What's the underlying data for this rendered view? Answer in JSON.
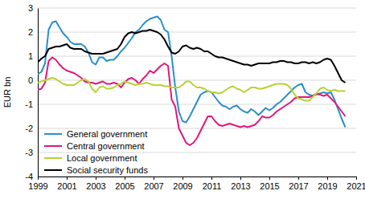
{
  "chart_data": {
    "type": "line",
    "y_label": "EUR bn",
    "x": [
      1999,
      1999.25,
      1999.5,
      1999.75,
      2000,
      2000.25,
      2000.5,
      2000.75,
      2001,
      2001.25,
      2001.5,
      2001.75,
      2002,
      2002.25,
      2002.5,
      2002.75,
      2003,
      2003.25,
      2003.5,
      2003.75,
      2004,
      2004.25,
      2004.5,
      2004.75,
      2005,
      2005.25,
      2005.5,
      2005.75,
      2006,
      2006.25,
      2006.5,
      2006.75,
      2007,
      2007.25,
      2007.5,
      2007.75,
      2008,
      2008.25,
      2008.5,
      2008.75,
      2009,
      2009.25,
      2009.5,
      2009.75,
      2010,
      2010.25,
      2010.5,
      2010.75,
      2011,
      2011.25,
      2011.5,
      2011.75,
      2012,
      2012.25,
      2012.5,
      2012.75,
      2013,
      2013.25,
      2013.5,
      2013.75,
      2014,
      2014.25,
      2014.5,
      2014.75,
      2015,
      2015.25,
      2015.5,
      2015.75,
      2016,
      2016.25,
      2016.5,
      2016.75,
      2017,
      2017.25,
      2017.5,
      2017.75,
      2018,
      2018.25,
      2018.5,
      2018.75,
      2019,
      2019.25,
      2019.5,
      2019.75,
      2020,
      2020.25
    ],
    "series": [
      {
        "name": "General government",
        "color": "#2a8fc7",
        "values": [
          0.25,
          0.35,
          0.7,
          2.1,
          2.4,
          2.45,
          2.2,
          1.95,
          1.8,
          1.6,
          1.5,
          1.5,
          1.5,
          1.4,
          1.15,
          0.75,
          0.65,
          0.95,
          0.95,
          0.8,
          0.85,
          0.85,
          1.0,
          1.2,
          1.35,
          1.55,
          1.75,
          2.0,
          2.1,
          2.3,
          2.45,
          2.55,
          2.6,
          2.65,
          2.5,
          2.1,
          2.0,
          1.0,
          -0.3,
          -1.3,
          -1.7,
          -1.75,
          -1.5,
          -1.2,
          -0.9,
          -0.6,
          -0.5,
          -0.45,
          -0.5,
          -0.7,
          -0.9,
          -1.05,
          -1.1,
          -1.2,
          -1.1,
          -1.05,
          -1.2,
          -1.3,
          -1.35,
          -1.2,
          -1.3,
          -1.45,
          -1.3,
          -1.15,
          -1.25,
          -1.15,
          -1.0,
          -0.9,
          -0.75,
          -0.6,
          -0.45,
          -0.3,
          -0.2,
          -0.15,
          -0.5,
          -0.6,
          -0.65,
          -0.6,
          -0.55,
          -0.5,
          -0.55,
          -0.5,
          -0.8,
          -1.2,
          -1.6,
          -1.95
        ]
      },
      {
        "name": "Central government",
        "color": "#e0177d",
        "values": [
          -0.4,
          -0.35,
          -0.1,
          0.8,
          0.95,
          0.85,
          0.65,
          0.5,
          0.4,
          0.35,
          0.3,
          0.2,
          0.1,
          -0.05,
          -0.1,
          -0.1,
          -0.15,
          -0.1,
          -0.05,
          -0.15,
          -0.15,
          -0.1,
          -0.15,
          -0.3,
          -0.1,
          0.05,
          0.1,
          0.0,
          -0.15,
          0.05,
          0.2,
          0.4,
          0.3,
          0.45,
          0.6,
          0.7,
          0.6,
          -0.8,
          -1.1,
          -2.0,
          -2.3,
          -2.6,
          -2.7,
          -2.6,
          -2.4,
          -2.1,
          -1.8,
          -1.5,
          -1.5,
          -1.7,
          -1.85,
          -1.9,
          -1.85,
          -1.8,
          -1.85,
          -1.9,
          -1.95,
          -1.9,
          -1.95,
          -1.9,
          -1.85,
          -1.7,
          -1.5,
          -1.55,
          -1.55,
          -1.45,
          -1.3,
          -1.2,
          -1.1,
          -1.0,
          -0.9,
          -0.75,
          -0.7,
          -0.7,
          -0.7,
          -0.7,
          -0.65,
          -0.55,
          -0.6,
          -0.65,
          -0.6,
          -0.75,
          -0.9,
          -1.1,
          -1.3,
          -1.5
        ]
      },
      {
        "name": "Local government",
        "color": "#b5d334",
        "values": [
          -0.1,
          -0.05,
          0.0,
          0.05,
          0.1,
          0.05,
          -0.05,
          -0.15,
          -0.2,
          -0.2,
          -0.2,
          -0.1,
          0.0,
          0.05,
          -0.05,
          -0.35,
          -0.5,
          -0.3,
          -0.25,
          -0.35,
          -0.35,
          -0.3,
          -0.2,
          -0.15,
          -0.05,
          -0.1,
          -0.15,
          -0.2,
          -0.15,
          -0.15,
          -0.1,
          -0.15,
          -0.2,
          -0.2,
          -0.2,
          -0.25,
          -0.25,
          -0.3,
          -0.3,
          -0.3,
          -0.2,
          -0.05,
          -0.05,
          -0.2,
          -0.3,
          -0.3,
          -0.35,
          -0.45,
          -0.5,
          -0.5,
          -0.55,
          -0.5,
          -0.4,
          -0.3,
          -0.25,
          -0.35,
          -0.4,
          -0.5,
          -0.4,
          -0.3,
          -0.3,
          -0.35,
          -0.35,
          -0.3,
          -0.25,
          -0.2,
          -0.15,
          -0.15,
          -0.15,
          -0.2,
          -0.35,
          -0.6,
          -0.75,
          -0.8,
          -0.85,
          -0.85,
          -0.7,
          -0.55,
          -0.35,
          -0.3,
          -0.4,
          -0.45,
          -0.4,
          -0.45,
          -0.45,
          -0.45
        ]
      },
      {
        "name": "Social security funds",
        "color": "#000000",
        "values": [
          0.75,
          0.9,
          1.0,
          1.3,
          1.35,
          1.4,
          1.4,
          1.45,
          1.5,
          1.35,
          1.3,
          1.3,
          1.3,
          1.2,
          1.15,
          1.1,
          1.1,
          1.1,
          1.1,
          1.15,
          1.2,
          1.25,
          1.3,
          1.5,
          1.8,
          1.95,
          2.0,
          1.95,
          2.0,
          2.05,
          2.05,
          2.1,
          2.05,
          2.0,
          1.9,
          1.7,
          1.4,
          1.15,
          1.1,
          1.2,
          1.4,
          1.45,
          1.35,
          1.3,
          1.35,
          1.3,
          1.2,
          1.2,
          1.1,
          1.0,
          0.95,
          0.95,
          0.9,
          0.85,
          0.8,
          0.75,
          0.7,
          0.65,
          0.65,
          0.6,
          0.65,
          0.7,
          0.7,
          0.7,
          0.7,
          0.75,
          0.75,
          0.8,
          0.8,
          0.75,
          0.75,
          0.7,
          0.7,
          0.75,
          0.75,
          0.7,
          0.75,
          0.7,
          0.75,
          0.85,
          0.9,
          0.85,
          0.6,
          0.3,
          0.0,
          -0.1
        ]
      }
    ],
    "xlim": [
      1999,
      2021
    ],
    "xticks": [
      1999,
      2001,
      2003,
      2005,
      2007,
      2009,
      2011,
      2013,
      2015,
      2017,
      2019,
      2021
    ],
    "ylim": [
      -4,
      3
    ],
    "yticks": [
      -4,
      -3,
      -2,
      -1,
      0,
      1,
      2,
      3
    ],
    "grid": true,
    "legend": "lower left"
  }
}
